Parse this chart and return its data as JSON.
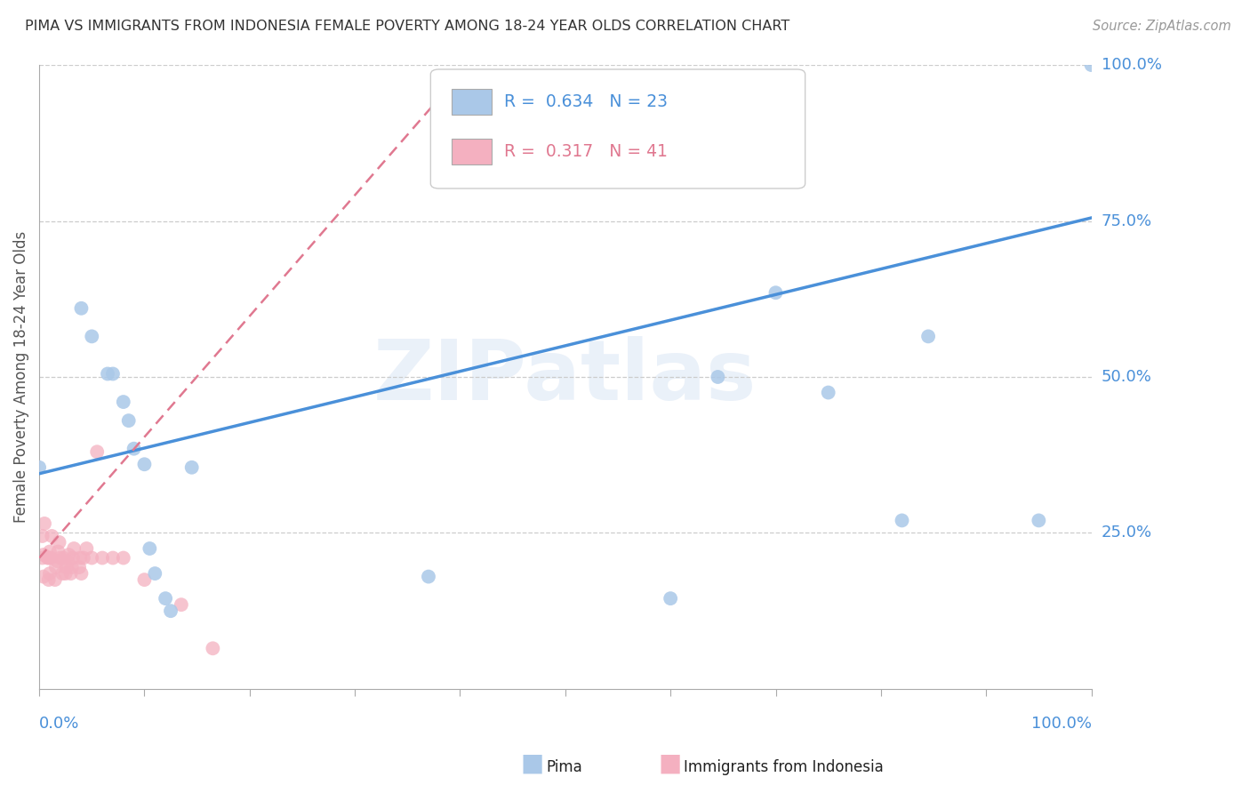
{
  "title": "PIMA VS IMMIGRANTS FROM INDONESIA FEMALE POVERTY AMONG 18-24 YEAR OLDS CORRELATION CHART",
  "source": "Source: ZipAtlas.com",
  "ylabel": "Female Poverty Among 18-24 Year Olds",
  "pima_R": 0.634,
  "pima_N": 23,
  "indonesia_R": 0.317,
  "indonesia_N": 41,
  "pima_color": "#aac8e8",
  "pima_line_color": "#4a90d9",
  "indonesia_color": "#f4b0c0",
  "indonesia_line_color": "#e07890",
  "watermark": "ZIPatlas",
  "xlim": [
    0.0,
    1.0
  ],
  "ylim": [
    0.0,
    1.0
  ],
  "xtick_positions": [
    0.0,
    0.1,
    0.2,
    0.3,
    0.4,
    0.5,
    0.6,
    0.7,
    0.8,
    0.9,
    1.0
  ],
  "ytick_positions": [
    0.0,
    0.25,
    0.5,
    0.75,
    1.0
  ],
  "pima_x": [
    0.0,
    0.04,
    0.05,
    0.065,
    0.07,
    0.08,
    0.085,
    0.09,
    0.1,
    0.105,
    0.11,
    0.12,
    0.125,
    0.145,
    0.37,
    0.6,
    0.645,
    0.7,
    0.75,
    0.82,
    0.845,
    0.95,
    1.0
  ],
  "pima_y": [
    0.355,
    0.61,
    0.565,
    0.505,
    0.505,
    0.46,
    0.43,
    0.385,
    0.36,
    0.225,
    0.185,
    0.145,
    0.125,
    0.355,
    0.18,
    0.145,
    0.5,
    0.635,
    0.475,
    0.27,
    0.565,
    0.27,
    1.0
  ],
  "indonesia_x": [
    0.003,
    0.003,
    0.004,
    0.004,
    0.005,
    0.008,
    0.009,
    0.009,
    0.01,
    0.01,
    0.011,
    0.012,
    0.015,
    0.016,
    0.017,
    0.018,
    0.019,
    0.02,
    0.022,
    0.023,
    0.025,
    0.026,
    0.027,
    0.028,
    0.03,
    0.031,
    0.032,
    0.033,
    0.038,
    0.039,
    0.04,
    0.042,
    0.045,
    0.05,
    0.055,
    0.06,
    0.07,
    0.08,
    0.1,
    0.135,
    0.165
  ],
  "indonesia_y": [
    0.21,
    0.245,
    0.18,
    0.215,
    0.265,
    0.21,
    0.175,
    0.21,
    0.185,
    0.22,
    0.21,
    0.245,
    0.175,
    0.195,
    0.205,
    0.22,
    0.235,
    0.21,
    0.185,
    0.21,
    0.185,
    0.195,
    0.205,
    0.215,
    0.185,
    0.195,
    0.21,
    0.225,
    0.195,
    0.21,
    0.185,
    0.21,
    0.225,
    0.21,
    0.38,
    0.21,
    0.21,
    0.21,
    0.175,
    0.135,
    0.065
  ],
  "pima_trend_x0": 0.0,
  "pima_trend_x1": 1.0,
  "pima_trend_y0": 0.345,
  "pima_trend_y1": 0.755,
  "indonesia_trend_x0": 0.0,
  "indonesia_trend_x1": 0.4,
  "indonesia_trend_y0": 0.21,
  "indonesia_trend_y1": 0.985
}
